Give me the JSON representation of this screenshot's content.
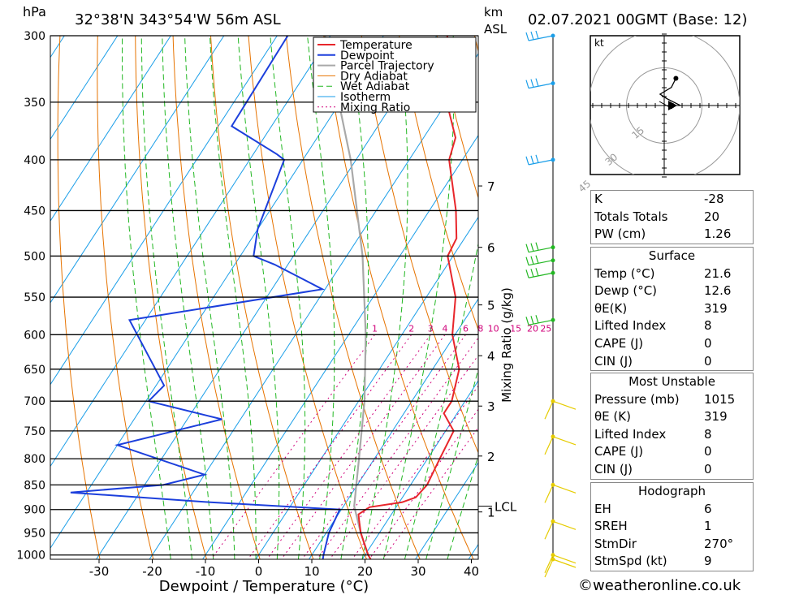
{
  "header": {
    "pressure_unit": "hPa",
    "location": "32°38'N  343°54'W  56m  ASL",
    "km_unit_1": "km",
    "km_unit_2": "ASL",
    "datetime": "02.07.2021  00GMT  (Base: 12)"
  },
  "chart_data": {
    "type": "skew-t",
    "xlabel": "Dewpoint / Temperature (°C)",
    "ylabel_left": "hPa",
    "mixing_ratio_label": "Mixing Ratio (g/kg)",
    "x_ticks": [
      -30,
      -20,
      -10,
      0,
      10,
      20,
      30,
      40
    ],
    "pressure_levels": [
      300,
      350,
      400,
      450,
      500,
      550,
      600,
      650,
      700,
      750,
      800,
      850,
      900,
      950,
      1000
    ],
    "km_ticks": [
      {
        "km": 1,
        "p": 905
      },
      {
        "km": 2,
        "p": 795
      },
      {
        "km": 3,
        "p": 708
      },
      {
        "km": 4,
        "p": 630
      },
      {
        "km": 5,
        "p": 560
      },
      {
        "km": 6,
        "p": 490
      },
      {
        "km": 7,
        "p": 425
      }
    ],
    "lcl": {
      "label": "LCL",
      "p": 893
    },
    "mixing_ratio_values": [
      "1",
      "2",
      "3",
      "4",
      "6",
      "8",
      "10",
      "15",
      "20",
      "25"
    ],
    "mixing_ratio_x_at_600": [
      -5.1,
      1.8,
      5.4,
      8.1,
      12.0,
      14.8,
      17.2,
      21.4,
      24.6,
      27.1
    ],
    "legend": [
      "Temperature",
      "Dewpoint",
      "Parcel Trajectory",
      "Dry Adiabat",
      "Wet Adiabat",
      "Isotherm",
      "Mixing Ratio"
    ],
    "colors": {
      "temperature": "#e8262b",
      "dewpoint": "#1c3fdc",
      "parcel": "#a9a9a9",
      "dry_adiabat": "#e67300",
      "wet_adiabat": "#22b722",
      "isotherm": "#1a9ee8",
      "mixing_ratio": "#d0007a"
    },
    "temperature": [
      {
        "p": 1010,
        "t": 21.6
      },
      {
        "p": 1000,
        "t": 20.6
      },
      {
        "p": 950,
        "t": 16.5
      },
      {
        "p": 925,
        "t": 14.8
      },
      {
        "p": 910,
        "t": 13.8
      },
      {
        "p": 895,
        "t": 15.0
      },
      {
        "p": 885,
        "t": 20.5
      },
      {
        "p": 875,
        "t": 22.5
      },
      {
        "p": 850,
        "t": 23.1
      },
      {
        "p": 800,
        "t": 22.3
      },
      {
        "p": 750,
        "t": 21.5
      },
      {
        "p": 720,
        "t": 17.5
      },
      {
        "p": 700,
        "t": 17.5
      },
      {
        "p": 650,
        "t": 15.0
      },
      {
        "p": 600,
        "t": 9.5
      },
      {
        "p": 550,
        "t": 5.5
      },
      {
        "p": 500,
        "t": -1.0
      },
      {
        "p": 480,
        "t": -1.5
      },
      {
        "p": 450,
        "t": -5.0
      },
      {
        "p": 400,
        "t": -12.5
      },
      {
        "p": 380,
        "t": -14.0
      },
      {
        "p": 350,
        "t": -20.0
      },
      {
        "p": 300,
        "t": -28.0
      }
    ],
    "dewpoint": [
      {
        "p": 1010,
        "t": 12.6
      },
      {
        "p": 1000,
        "t": 12.2
      },
      {
        "p": 950,
        "t": 10.5
      },
      {
        "p": 900,
        "t": 9.7
      },
      {
        "p": 885,
        "t": -15.5
      },
      {
        "p": 865,
        "t": -43.0
      },
      {
        "p": 850,
        "t": -26.5
      },
      {
        "p": 830,
        "t": -20.0
      },
      {
        "p": 775,
        "t": -40.0
      },
      {
        "p": 730,
        "t": -23.5
      },
      {
        "p": 700,
        "t": -39.5
      },
      {
        "p": 675,
        "t": -38.5
      },
      {
        "p": 580,
        "t": -53.0
      },
      {
        "p": 540,
        "t": -20.5
      },
      {
        "p": 510,
        "t": -32.5
      },
      {
        "p": 500,
        "t": -37.5
      },
      {
        "p": 470,
        "t": -40.0
      },
      {
        "p": 400,
        "t": -43.5
      },
      {
        "p": 395,
        "t": -45.5
      },
      {
        "p": 370,
        "t": -57.5
      },
      {
        "p": 300,
        "t": -58.0
      }
    ],
    "parcel": [
      {
        "p": 1000,
        "t": 20.6
      },
      {
        "p": 950,
        "t": 16.5
      },
      {
        "p": 893,
        "t": 12.0
      },
      {
        "p": 850,
        "t": 9.8
      },
      {
        "p": 800,
        "t": 7.1
      },
      {
        "p": 700,
        "t": 1.1
      },
      {
        "p": 600,
        "t": -6.8
      },
      {
        "p": 500,
        "t": -17.0
      },
      {
        "p": 400,
        "t": -31.0
      },
      {
        "p": 300,
        "t": -51.0
      }
    ],
    "hodograph": {
      "unit": "kt",
      "ring_labels": [
        "15",
        "30",
        "45"
      ],
      "trace": [
        [
          0,
          0
        ],
        [
          -6,
          3
        ],
        [
          -9,
          5
        ],
        [
          -4,
          8
        ],
        [
          -2,
          12
        ]
      ]
    },
    "wind_barbs": [
      {
        "p": 300,
        "color": "#1a9ee8"
      },
      {
        "p": 335,
        "color": "#1a9ee8"
      },
      {
        "p": 400,
        "color": "#1a9ee8"
      },
      {
        "p": 490,
        "color": "#22b722"
      },
      {
        "p": 505,
        "color": "#22b722"
      },
      {
        "p": 520,
        "color": "#22b722"
      },
      {
        "p": 580,
        "color": "#22b722"
      },
      {
        "p": 700,
        "color": "#e6cc00"
      },
      {
        "p": 760,
        "color": "#e6cc00"
      },
      {
        "p": 850,
        "color": "#e6cc00"
      },
      {
        "p": 925,
        "color": "#e6cc00"
      },
      {
        "p": 1000,
        "color": "#e6cc00"
      },
      {
        "p": 1010,
        "color": "#e6cc00"
      }
    ]
  },
  "indices": {
    "k_label": "K",
    "k_value": "-28",
    "tt_label": "Totals Totals",
    "tt_value": "20",
    "pw_label": "PW (cm)",
    "pw_value": "1.26"
  },
  "surface": {
    "title": "Surface",
    "temp_label": "Temp (°C)",
    "temp_value": "21.6",
    "dewp_label": "Dewp (°C)",
    "dewp_value": "12.6",
    "theta_label": "θE(K)",
    "theta_value": "319",
    "li_label": "Lifted Index",
    "li_value": "8",
    "cape_label": "CAPE (J)",
    "cape_value": "0",
    "cin_label": "CIN (J)",
    "cin_value": "0"
  },
  "most_unstable": {
    "title": "Most Unstable",
    "pressure_label": "Pressure (mb)",
    "pressure_value": "1015",
    "theta_label": "θE (K)",
    "theta_value": "319",
    "li_label": "Lifted Index",
    "li_value": "8",
    "cape_label": "CAPE (J)",
    "cape_value": "0",
    "cin_label": "CIN (J)",
    "cin_value": "0"
  },
  "hodograph_table": {
    "title": "Hodograph",
    "eh_label": "EH",
    "eh_value": "6",
    "sreh_label": "SREH",
    "sreh_value": "1",
    "stmdir_label": "StmDir",
    "stmdir_value": "270°",
    "stmspd_label": "StmSpd (kt)",
    "stmspd_value": "9"
  },
  "footer": {
    "credit": "©weatheronline.co.uk"
  }
}
